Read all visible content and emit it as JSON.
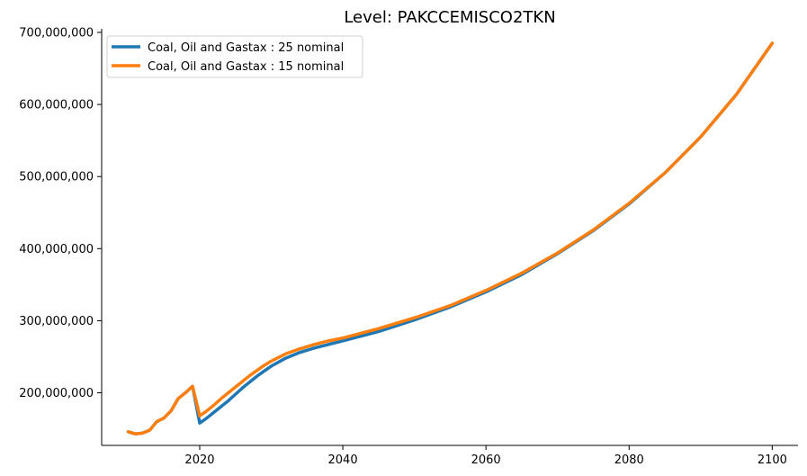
{
  "chart_data": {
    "type": "line",
    "title": "Level: PAKCCEMISCO2TKN",
    "xlabel": "",
    "ylabel": "",
    "xlim": [
      2006.3,
      2103.6
    ],
    "ylim": [
      127000000,
      705000000
    ],
    "x_ticks": [
      2020,
      2040,
      2060,
      2080,
      2100
    ],
    "x_tick_labels": [
      "2020",
      "2040",
      "2060",
      "2080",
      "2100"
    ],
    "y_ticks": [
      200000000,
      300000000,
      400000000,
      500000000,
      600000000,
      700000000
    ],
    "y_tick_labels": [
      "200,000,000",
      "300,000,000",
      "400,000,000",
      "500,000,000",
      "600,000,000",
      "700,000,000"
    ],
    "legend_position": "top-left",
    "grid": false,
    "series": [
      {
        "name": "Coal, Oil and Gastax : 25 nominal",
        "color": "#1f77b4",
        "points": [
          [
            2010,
            146000000
          ],
          [
            2011,
            143000000
          ],
          [
            2012,
            144000000
          ],
          [
            2013,
            148000000
          ],
          [
            2014,
            160000000
          ],
          [
            2015,
            165000000
          ],
          [
            2016,
            175000000
          ],
          [
            2017,
            192000000
          ],
          [
            2018,
            200000000
          ],
          [
            2019,
            209000000
          ],
          [
            2020,
            158000000
          ],
          [
            2021,
            165000000
          ],
          [
            2022,
            173000000
          ],
          [
            2023,
            181000000
          ],
          [
            2024,
            189000000
          ],
          [
            2025,
            198000000
          ],
          [
            2026,
            207000000
          ],
          [
            2027,
            215000000
          ],
          [
            2028,
            223000000
          ],
          [
            2029,
            230000000
          ],
          [
            2030,
            237000000
          ],
          [
            2032,
            248000000
          ],
          [
            2034,
            256000000
          ],
          [
            2036,
            262000000
          ],
          [
            2038,
            267000000
          ],
          [
            2040,
            272000000
          ],
          [
            2045,
            285000000
          ],
          [
            2050,
            301000000
          ],
          [
            2055,
            319000000
          ],
          [
            2060,
            340000000
          ],
          [
            2065,
            364000000
          ],
          [
            2070,
            393000000
          ],
          [
            2075,
            425000000
          ],
          [
            2080,
            462000000
          ],
          [
            2085,
            505000000
          ],
          [
            2090,
            555000000
          ],
          [
            2095,
            614000000
          ],
          [
            2100,
            685000000
          ]
        ]
      },
      {
        "name": "Coal, Oil and Gastax : 15 nominal",
        "color": "#ff7f0e",
        "points": [
          [
            2010,
            146000000
          ],
          [
            2011,
            143000000
          ],
          [
            2012,
            144000000
          ],
          [
            2013,
            148000000
          ],
          [
            2014,
            160000000
          ],
          [
            2015,
            165000000
          ],
          [
            2016,
            175000000
          ],
          [
            2017,
            192000000
          ],
          [
            2018,
            200000000
          ],
          [
            2019,
            209000000
          ],
          [
            2020,
            168000000
          ],
          [
            2021,
            175000000
          ],
          [
            2022,
            183000000
          ],
          [
            2023,
            192000000
          ],
          [
            2024,
            200000000
          ],
          [
            2025,
            208000000
          ],
          [
            2026,
            216000000
          ],
          [
            2027,
            224000000
          ],
          [
            2028,
            231000000
          ],
          [
            2029,
            238000000
          ],
          [
            2030,
            244000000
          ],
          [
            2032,
            254000000
          ],
          [
            2034,
            261000000
          ],
          [
            2036,
            267000000
          ],
          [
            2038,
            272000000
          ],
          [
            2040,
            276000000
          ],
          [
            2045,
            289000000
          ],
          [
            2050,
            304000000
          ],
          [
            2055,
            321000000
          ],
          [
            2060,
            342000000
          ],
          [
            2065,
            366000000
          ],
          [
            2070,
            394000000
          ],
          [
            2075,
            426000000
          ],
          [
            2080,
            463000000
          ],
          [
            2085,
            505000000
          ],
          [
            2090,
            555000000
          ],
          [
            2095,
            614000000
          ],
          [
            2100,
            685000000
          ]
        ]
      }
    ]
  }
}
